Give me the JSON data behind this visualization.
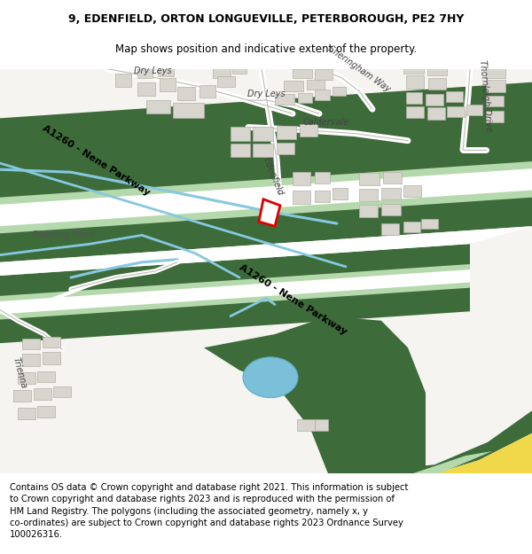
{
  "title": "9, EDENFIELD, ORTON LONGUEVILLE, PETERBOROUGH, PE2 7HY",
  "subtitle": "Map shows position and indicative extent of the property.",
  "footer": "Contains OS data © Crown copyright and database right 2021. This information is subject\nto Crown copyright and database rights 2023 and is reproduced with the permission of\nHM Land Registry. The polygons (including the associated geometry, namely x, y\nco-ordinates) are subject to Crown copyright and database rights 2023 Ordnance Survey\n100026316.",
  "title_fontsize": 9.0,
  "subtitle_fontsize": 8.5,
  "footer_fontsize": 7.2,
  "map_bg": "#f0eeea",
  "road_dark_green": "#3d6b3a",
  "road_mid_green": "#7aaa72",
  "road_light_green": "#b5d9ac",
  "building_fill": "#d8d5cf",
  "building_edge": "#b5b0a8",
  "playing_field_color": "#c5ddb8",
  "water_color": "#86c8e0",
  "pond_color": "#7bbfd8",
  "plot_color": "#dd0000",
  "yellow_fill": "#f0d84a",
  "yellow_light": "#e8e070"
}
